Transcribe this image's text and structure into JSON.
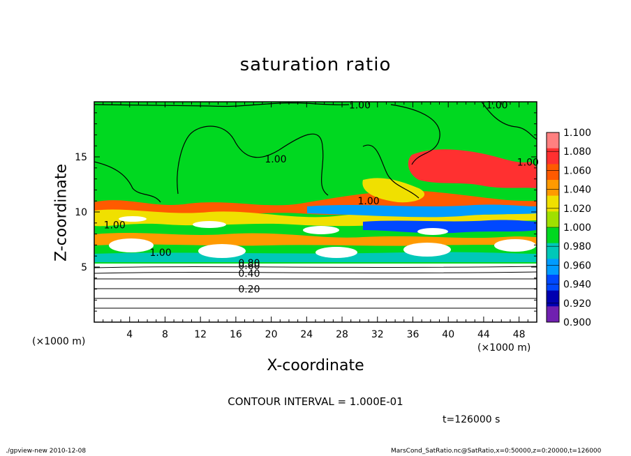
{
  "chart_data": {
    "type": "heatmap",
    "title": "saturation ratio",
    "xlabel": "X-coordinate",
    "ylabel": "Z-coordinate",
    "x_unit_label": "(×1000 m)",
    "y_unit_label": "(×1000 m)",
    "xlim": [
      0,
      50
    ],
    "ylim": [
      0,
      20
    ],
    "x_ticks": [
      4,
      8,
      12,
      16,
      20,
      24,
      28,
      32,
      36,
      40,
      44,
      48
    ],
    "y_ticks": [
      5,
      10,
      15
    ],
    "colorbar": {
      "levels": [
        "1.100",
        "1.080",
        "1.060",
        "1.040",
        "1.020",
        "1.000",
        "0.980",
        "0.960",
        "0.940",
        "0.920",
        "0.900"
      ],
      "colors": [
        "#ff8080",
        "#ff3030",
        "#ff5a00",
        "#ff9a00",
        "#f0e000",
        "#a0e000",
        "#00d820",
        "#00c8b8",
        "#009cff",
        "#0048ff",
        "#0000b0",
        "#7020b0"
      ]
    },
    "contour_labels": [
      {
        "text": "1.00",
        "x": 30,
        "z": 19.4
      },
      {
        "text": "1.00",
        "x": 45.5,
        "z": 19.4
      },
      {
        "text": "1.00",
        "x": 20.5,
        "z": 14.5
      },
      {
        "text": "1.00",
        "x": 31,
        "z": 10.7
      },
      {
        "text": "1.00",
        "x": 49,
        "z": 14.2
      },
      {
        "text": "1.00",
        "x": 2.3,
        "z": 8.5
      },
      {
        "text": "1.00",
        "x": 7.5,
        "z": 6.0
      },
      {
        "text": "0.80",
        "x": 17.5,
        "z": 4.8
      },
      {
        "text": "0.60",
        "x": 17.5,
        "z": 4.8
      },
      {
        "text": "0.40",
        "x": 17.5,
        "z": 4.1
      },
      {
        "text": "0.20",
        "x": 17.5,
        "z": 2.7
      }
    ],
    "contour_interval": "CONTOUR INTERVAL = 1.000E-01",
    "time": "t=126000 s"
  },
  "footer": {
    "left": "./gpview-new   2010-12-08",
    "right": "MarsCond_SatRatio.nc@SatRatio,x=0:50000,z=0:20000,t=126000"
  }
}
